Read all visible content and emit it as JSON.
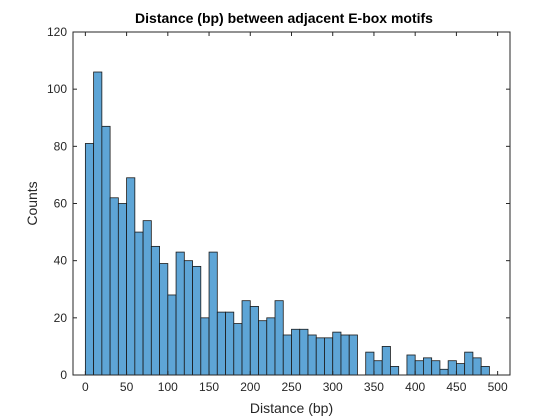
{
  "chart_data": {
    "type": "bar",
    "subtype": "histogram",
    "title": "Distance (bp) between adjacent E-box motifs",
    "xlabel": "Distance (bp)",
    "ylabel": "Counts",
    "xlim": [
      -15,
      515
    ],
    "ylim": [
      0,
      120
    ],
    "xticks": [
      0,
      50,
      100,
      150,
      200,
      250,
      300,
      350,
      400,
      450,
      500
    ],
    "yticks": [
      0,
      20,
      40,
      60,
      80,
      100,
      120
    ],
    "bin_width": 10,
    "bin_start": 0,
    "values": [
      81,
      106,
      87,
      62,
      60,
      69,
      50,
      54,
      45,
      39,
      28,
      43,
      40,
      38,
      20,
      43,
      22,
      22,
      18,
      26,
      24,
      19,
      20,
      26,
      14,
      16,
      16,
      14,
      13,
      13,
      15,
      14,
      14,
      0,
      8,
      5,
      10,
      3,
      0,
      7,
      5,
      6,
      5,
      2,
      5,
      4,
      8,
      6,
      3
    ],
    "bar_color": "#5ea5d6",
    "bar_edge_color": "#1a1a1a",
    "grid": false,
    "box": true
  }
}
